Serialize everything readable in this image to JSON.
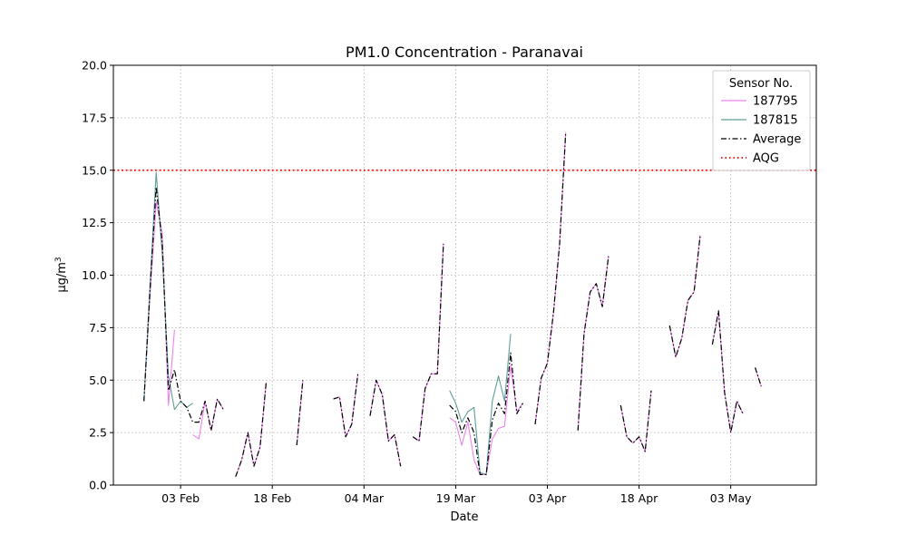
{
  "chart_data": {
    "type": "line",
    "title": "PM1.0 Concentration - Paranavai",
    "xlabel": "Date",
    "ylabel": "μg/m",
    "ylabel_sup": "3",
    "ylim": [
      0,
      20
    ],
    "yticks": [
      0,
      2.5,
      5,
      7.5,
      10,
      12.5,
      15,
      17.5,
      20
    ],
    "ytick_labels": [
      "0.0",
      "2.5",
      "5.0",
      "7.5",
      "10.0",
      "12.5",
      "15.0",
      "17.5",
      "20.0"
    ],
    "xlim": [
      "2024-01-23",
      "2024-05-17"
    ],
    "xticks": [
      "2024-02-03",
      "2024-02-18",
      "2024-03-04",
      "2024-03-19",
      "2024-04-03",
      "2024-04-18",
      "2024-05-03"
    ],
    "xtick_labels": [
      "03 Feb",
      "18 Feb",
      "04 Mar",
      "19 Mar",
      "03 Apr",
      "18 Apr",
      "03 May"
    ],
    "grid": true,
    "legend": {
      "title": "Sensor No.",
      "position": "top-right"
    },
    "reference_line": {
      "name": "AQG",
      "value": 15,
      "color": "#ff0000"
    },
    "series": [
      {
        "name": "187795",
        "color": "#ee82ee",
        "style": "solid",
        "points": [
          [
            "2024-01-28",
            4.0
          ],
          [
            "2024-01-29",
            9.0
          ],
          [
            "2024-01-30",
            13.5
          ],
          [
            "2024-01-31",
            12.0
          ],
          [
            "2024-02-01",
            3.8
          ],
          [
            "2024-02-02",
            7.4
          ],
          null,
          [
            "2024-02-05",
            2.4
          ],
          [
            "2024-02-06",
            2.2
          ],
          [
            "2024-02-07",
            4.0
          ],
          [
            "2024-02-08",
            2.6
          ],
          [
            "2024-02-09",
            4.1
          ],
          [
            "2024-02-10",
            3.6
          ],
          null,
          [
            "2024-02-12",
            0.4
          ],
          [
            "2024-02-13",
            1.2
          ],
          [
            "2024-02-14",
            2.5
          ],
          [
            "2024-02-15",
            0.9
          ],
          [
            "2024-02-16",
            1.8
          ],
          [
            "2024-02-17",
            4.9
          ],
          null,
          [
            "2024-02-22",
            1.9
          ],
          [
            "2024-02-23",
            5.0
          ],
          null,
          [
            "2024-02-28",
            4.1
          ],
          [
            "2024-02-29",
            4.2
          ],
          [
            "2024-03-01",
            2.3
          ],
          [
            "2024-03-02",
            2.9
          ],
          [
            "2024-03-03",
            5.3
          ],
          null,
          [
            "2024-03-05",
            3.3
          ],
          [
            "2024-03-06",
            5.0
          ],
          [
            "2024-03-07",
            4.3
          ],
          [
            "2024-03-08",
            2.1
          ],
          [
            "2024-03-09",
            2.4
          ],
          [
            "2024-03-10",
            0.9
          ],
          null,
          [
            "2024-03-12",
            2.3
          ],
          [
            "2024-03-13",
            2.1
          ],
          [
            "2024-03-14",
            4.6
          ],
          [
            "2024-03-15",
            5.3
          ],
          [
            "2024-03-16",
            5.3
          ],
          [
            "2024-03-17",
            11.5
          ],
          null,
          [
            "2024-03-18",
            3.2
          ],
          [
            "2024-03-19",
            3.0
          ],
          [
            "2024-03-20",
            1.9
          ],
          [
            "2024-03-21",
            3.0
          ],
          [
            "2024-03-22",
            1.2
          ],
          [
            "2024-03-23",
            0.5
          ],
          [
            "2024-03-24",
            0.5
          ],
          [
            "2024-03-25",
            2.2
          ],
          [
            "2024-03-26",
            2.7
          ],
          [
            "2024-03-27",
            2.8
          ],
          [
            "2024-03-28",
            5.7
          ],
          [
            "2024-03-29",
            3.5
          ],
          [
            "2024-03-30",
            3.9
          ],
          null,
          [
            "2024-04-01",
            2.9
          ],
          [
            "2024-04-02",
            5.1
          ],
          [
            "2024-04-03",
            5.8
          ],
          [
            "2024-04-04",
            8.2
          ],
          [
            "2024-04-05",
            11.5
          ],
          [
            "2024-04-06",
            16.8
          ],
          null,
          [
            "2024-04-08",
            2.6
          ],
          [
            "2024-04-09",
            7.2
          ],
          [
            "2024-04-10",
            9.2
          ],
          [
            "2024-04-11",
            9.6
          ],
          [
            "2024-04-12",
            8.5
          ],
          [
            "2024-04-13",
            10.9
          ],
          null,
          [
            "2024-04-15",
            3.8
          ],
          [
            "2024-04-16",
            2.3
          ],
          [
            "2024-04-17",
            2.0
          ],
          [
            "2024-04-18",
            2.3
          ],
          [
            "2024-04-19",
            1.6
          ],
          [
            "2024-04-20",
            4.5
          ],
          null,
          [
            "2024-04-23",
            7.6
          ],
          [
            "2024-04-24",
            6.1
          ],
          [
            "2024-04-25",
            7.0
          ],
          [
            "2024-04-26",
            8.8
          ],
          [
            "2024-04-27",
            9.2
          ],
          [
            "2024-04-28",
            11.9
          ],
          null,
          [
            "2024-04-30",
            6.7
          ],
          [
            "2024-05-01",
            8.3
          ],
          [
            "2024-05-02",
            4.4
          ],
          [
            "2024-05-03",
            2.5
          ],
          [
            "2024-05-04",
            4.0
          ],
          [
            "2024-05-05",
            3.4
          ],
          null,
          [
            "2024-05-07",
            5.6
          ],
          [
            "2024-05-08",
            4.7
          ]
        ]
      },
      {
        "name": "187815",
        "color": "#5f9e98",
        "style": "solid",
        "points": [
          [
            "2024-01-28",
            4.0
          ],
          [
            "2024-01-29",
            9.5
          ],
          [
            "2024-01-30",
            14.9
          ],
          [
            "2024-01-31",
            11.0
          ],
          [
            "2024-02-01",
            5.2
          ],
          [
            "2024-02-02",
            3.6
          ],
          [
            "2024-02-03",
            4.0
          ],
          [
            "2024-02-04",
            3.7
          ],
          [
            "2024-02-05",
            3.9
          ],
          null,
          [
            "2024-03-18",
            4.5
          ],
          [
            "2024-03-19",
            3.9
          ],
          [
            "2024-03-20",
            3.0
          ],
          [
            "2024-03-21",
            3.5
          ],
          [
            "2024-03-22",
            3.7
          ],
          [
            "2024-03-23",
            0.6
          ],
          [
            "2024-03-24",
            0.5
          ],
          [
            "2024-03-25",
            4.0
          ],
          [
            "2024-03-26",
            5.2
          ],
          [
            "2024-03-27",
            4.0
          ],
          [
            "2024-03-28",
            7.2
          ]
        ]
      },
      {
        "name": "Average",
        "color": "#000000",
        "style": "dashdot",
        "points": [
          [
            "2024-01-28",
            4.0
          ],
          [
            "2024-01-29",
            9.3
          ],
          [
            "2024-01-30",
            14.2
          ],
          [
            "2024-01-31",
            11.5
          ],
          [
            "2024-02-01",
            4.5
          ],
          [
            "2024-02-02",
            5.5
          ],
          [
            "2024-02-03",
            4.0
          ],
          [
            "2024-02-04",
            3.7
          ],
          [
            "2024-02-05",
            3.0
          ],
          [
            "2024-02-06",
            3.0
          ],
          [
            "2024-02-07",
            4.0
          ],
          [
            "2024-02-08",
            2.6
          ],
          [
            "2024-02-09",
            4.1
          ],
          [
            "2024-02-10",
            3.6
          ],
          null,
          [
            "2024-02-12",
            0.4
          ],
          [
            "2024-02-13",
            1.2
          ],
          [
            "2024-02-14",
            2.5
          ],
          [
            "2024-02-15",
            0.9
          ],
          [
            "2024-02-16",
            1.8
          ],
          [
            "2024-02-17",
            4.9
          ],
          null,
          [
            "2024-02-22",
            1.9
          ],
          [
            "2024-02-23",
            5.0
          ],
          null,
          [
            "2024-02-28",
            4.1
          ],
          [
            "2024-02-29",
            4.2
          ],
          [
            "2024-03-01",
            2.3
          ],
          [
            "2024-03-02",
            2.9
          ],
          [
            "2024-03-03",
            5.3
          ],
          null,
          [
            "2024-03-05",
            3.3
          ],
          [
            "2024-03-06",
            5.0
          ],
          [
            "2024-03-07",
            4.3
          ],
          [
            "2024-03-08",
            2.1
          ],
          [
            "2024-03-09",
            2.4
          ],
          [
            "2024-03-10",
            0.9
          ],
          null,
          [
            "2024-03-12",
            2.3
          ],
          [
            "2024-03-13",
            2.1
          ],
          [
            "2024-03-14",
            4.6
          ],
          [
            "2024-03-15",
            5.3
          ],
          [
            "2024-03-16",
            5.3
          ],
          [
            "2024-03-17",
            11.5
          ],
          null,
          [
            "2024-03-18",
            3.8
          ],
          [
            "2024-03-19",
            3.5
          ],
          [
            "2024-03-20",
            2.5
          ],
          [
            "2024-03-21",
            3.2
          ],
          [
            "2024-03-22",
            2.5
          ],
          [
            "2024-03-23",
            0.5
          ],
          [
            "2024-03-24",
            0.5
          ],
          [
            "2024-03-25",
            3.1
          ],
          [
            "2024-03-26",
            3.9
          ],
          [
            "2024-03-27",
            3.4
          ],
          [
            "2024-03-28",
            6.3
          ],
          [
            "2024-03-29",
            3.4
          ],
          [
            "2024-03-30",
            3.9
          ],
          null,
          [
            "2024-04-01",
            2.9
          ],
          [
            "2024-04-02",
            5.1
          ],
          [
            "2024-04-03",
            5.8
          ],
          [
            "2024-04-04",
            8.2
          ],
          [
            "2024-04-05",
            11.5
          ],
          [
            "2024-04-06",
            16.8
          ],
          null,
          [
            "2024-04-08",
            2.6
          ],
          [
            "2024-04-09",
            7.2
          ],
          [
            "2024-04-10",
            9.2
          ],
          [
            "2024-04-11",
            9.6
          ],
          [
            "2024-04-12",
            8.5
          ],
          [
            "2024-04-13",
            10.9
          ],
          null,
          [
            "2024-04-15",
            3.8
          ],
          [
            "2024-04-16",
            2.3
          ],
          [
            "2024-04-17",
            2.0
          ],
          [
            "2024-04-18",
            2.3
          ],
          [
            "2024-04-19",
            1.6
          ],
          [
            "2024-04-20",
            4.5
          ],
          null,
          [
            "2024-04-23",
            7.6
          ],
          [
            "2024-04-24",
            6.1
          ],
          [
            "2024-04-25",
            7.0
          ],
          [
            "2024-04-26",
            8.8
          ],
          [
            "2024-04-27",
            9.2
          ],
          [
            "2024-04-28",
            11.9
          ],
          null,
          [
            "2024-04-30",
            6.7
          ],
          [
            "2024-05-01",
            8.3
          ],
          [
            "2024-05-02",
            4.4
          ],
          [
            "2024-05-03",
            2.5
          ],
          [
            "2024-05-04",
            4.0
          ],
          [
            "2024-05-05",
            3.4
          ],
          null,
          [
            "2024-05-07",
            5.6
          ],
          [
            "2024-05-08",
            4.7
          ]
        ]
      }
    ]
  }
}
